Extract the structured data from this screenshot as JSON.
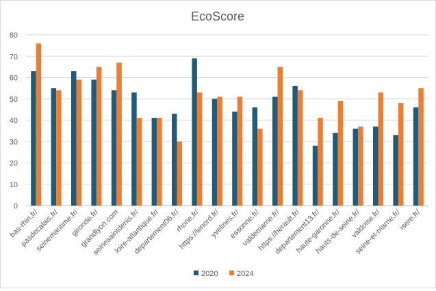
{
  "chart_data": {
    "type": "bar",
    "title": "EcoScore",
    "categories": [
      "bas-rhin.fr/",
      "pasdecalais.fr/",
      "seinemaritime.fr/",
      "gironde.fr/",
      "grandlyon.com",
      "seinesaintdenis.fr/",
      "loire-atlantique.fr/",
      "departement06.fr/",
      "rhone.fr/",
      "https://lenord.fr/",
      "yvelines.fr/",
      "essonne.fr/",
      "valdemarne.fr/",
      "https://herault.fr/",
      "departement13.fr/",
      "haute-garonne.fr/",
      "hauts-de-seine.fr/",
      "valdoise.fr/",
      "seine-et-marne.fr/",
      "isere.fr/"
    ],
    "series": [
      {
        "name": "2020",
        "color": "#1f5c7a",
        "values": [
          63,
          55,
          63,
          59,
          54,
          53,
          41,
          43,
          69,
          50,
          44,
          46,
          51,
          56,
          28,
          34,
          36,
          37,
          33,
          46
        ]
      },
      {
        "name": "2024",
        "color": "#ed7d31",
        "values": [
          76,
          54,
          59,
          65,
          67,
          41,
          41,
          30,
          53,
          51,
          51,
          36,
          65,
          54,
          41,
          49,
          37,
          53,
          48,
          55
        ]
      }
    ],
    "ylim": [
      0,
      80
    ],
    "yticks": [
      0,
      10,
      20,
      30,
      40,
      50,
      60,
      70,
      80
    ],
    "grid": true,
    "legend_position": "bottom",
    "xlabel": "",
    "ylabel": ""
  }
}
